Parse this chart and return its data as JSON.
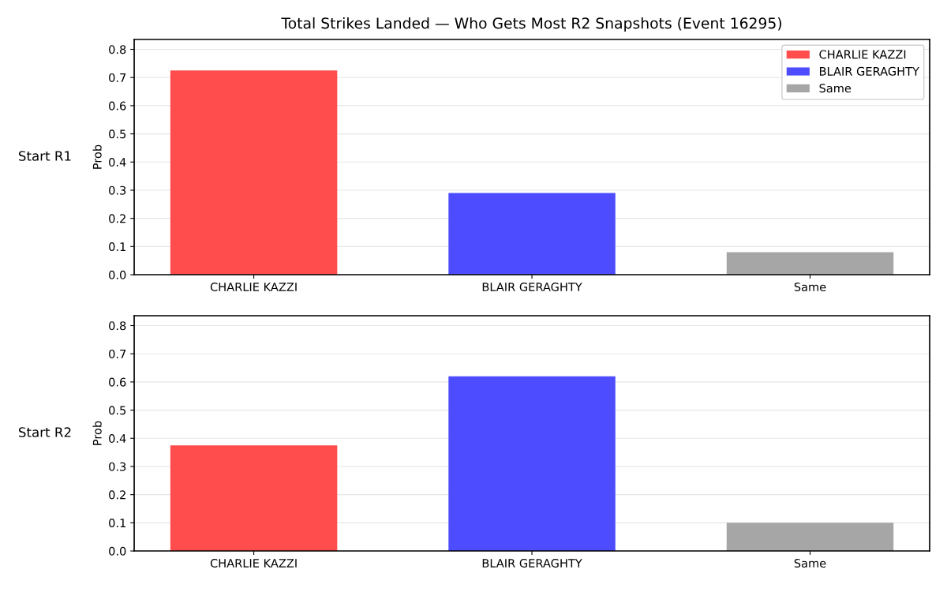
{
  "chart_data": [
    {
      "type": "bar",
      "title": "Total Strikes Landed — Who Gets Most R2 Snapshots (Event 16295)",
      "ylabel": "Prob",
      "annotations": [
        "Start R1"
      ],
      "categories": [
        "CHARLIE KAZZI",
        "BLAIR GERAGHTY",
        "Same"
      ],
      "series": [
        {
          "name": "CHARLIE KAZZI",
          "color": "#ff4d4d",
          "values": [
            0.725,
            null,
            null
          ]
        },
        {
          "name": "BLAIR GERAGHTY",
          "color": "#4d4dff",
          "values": [
            null,
            0.29,
            null
          ]
        },
        {
          "name": "Same",
          "color": "#a6a6a6",
          "values": [
            null,
            null,
            0.08
          ]
        }
      ],
      "ylim": [
        0,
        0.835
      ],
      "yticks": [
        {
          "value": 0,
          "label": "0.0"
        },
        0.1,
        0.2,
        0.3,
        0.4,
        0.5,
        0.6,
        0.7,
        0.8
      ],
      "grid": "y",
      "legend": "top right"
    },
    {
      "type": "bar",
      "ylabel": "Prob",
      "annotations": [
        "Start R2"
      ],
      "categories": [
        "CHARLIE KAZZI",
        "BLAIR GERAGHTY",
        "Same"
      ],
      "values": [
        0.375,
        0.62,
        0.1
      ],
      "colors": [
        "#ff4d4d",
        "#4d4dff",
        "#a6a6a6"
      ],
      "ylim": [
        0,
        0.835
      ],
      "yticks": [
        {
          "value": 0,
          "label": "0.0"
        },
        0.1,
        0.2,
        0.3,
        0.4,
        0.5,
        0.6,
        0.7,
        0.8
      ],
      "grid": "y"
    }
  ]
}
